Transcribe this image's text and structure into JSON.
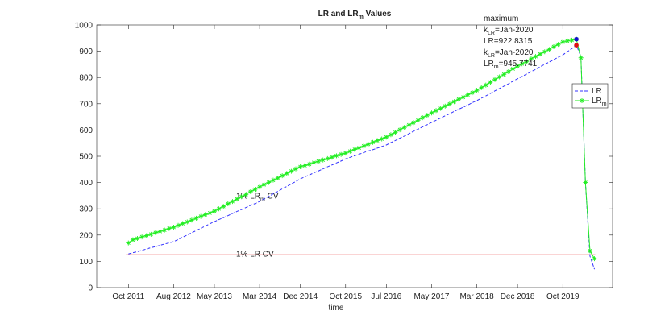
{
  "chart_data": {
    "type": "line",
    "title": [
      "LR and LR",
      {
        "sub": "m"
      },
      " Values"
    ],
    "xlabel": "time",
    "x": [
      "2011-10",
      "2011-11",
      "2011-12",
      "2012-01",
      "2012-02",
      "2012-03",
      "2012-04",
      "2012-05",
      "2012-06",
      "2012-07",
      "2012-08",
      "2012-09",
      "2012-10",
      "2012-11",
      "2012-12",
      "2013-01",
      "2013-02",
      "2013-03",
      "2013-04",
      "2013-05",
      "2013-06",
      "2013-07",
      "2013-08",
      "2013-09",
      "2013-10",
      "2013-11",
      "2013-12",
      "2014-01",
      "2014-02",
      "2014-03",
      "2014-04",
      "2014-05",
      "2014-06",
      "2014-07",
      "2014-08",
      "2014-09",
      "2014-10",
      "2014-11",
      "2014-12",
      "2015-01",
      "2015-02",
      "2015-03",
      "2015-04",
      "2015-05",
      "2015-06",
      "2015-07",
      "2015-08",
      "2015-09",
      "2015-10",
      "2015-11",
      "2015-12",
      "2016-01",
      "2016-02",
      "2016-03",
      "2016-04",
      "2016-05",
      "2016-06",
      "2016-07",
      "2016-08",
      "2016-09",
      "2016-10",
      "2016-11",
      "2016-12",
      "2017-01",
      "2017-02",
      "2017-03",
      "2017-04",
      "2017-05",
      "2017-06",
      "2017-07",
      "2017-08",
      "2017-09",
      "2017-10",
      "2017-11",
      "2017-12",
      "2018-01",
      "2018-02",
      "2018-03",
      "2018-04",
      "2018-05",
      "2018-06",
      "2018-07",
      "2018-08",
      "2018-09",
      "2018-10",
      "2018-11",
      "2018-12",
      "2019-01",
      "2019-02",
      "2019-03",
      "2019-04",
      "2019-05",
      "2019-06",
      "2019-07",
      "2019-08",
      "2019-09",
      "2019-10",
      "2019-11",
      "2019-12",
      "2020-01",
      "2020-02",
      "2020-03",
      "2020-04",
      "2020-05"
    ],
    "series": [
      {
        "name": "LR",
        "color": "#3333ff",
        "dash": true,
        "marker": "none",
        "max_marker_color": "#dd1111",
        "values": [
          128,
          133,
          137,
          142,
          147,
          152,
          156,
          161,
          166,
          170,
          175,
          183,
          192,
          200,
          209,
          217,
          226,
          234,
          243,
          251,
          259,
          266,
          274,
          282,
          290,
          297,
          305,
          313,
          320,
          328,
          338,
          347,
          357,
          366,
          376,
          385,
          395,
          404,
          414,
          422,
          429,
          437,
          444,
          452,
          460,
          467,
          475,
          482,
          490,
          496,
          502,
          508,
          514,
          520,
          525,
          531,
          537,
          543,
          552,
          560,
          569,
          577,
          586,
          595,
          603,
          612,
          620,
          629,
          637,
          646,
          654,
          662,
          671,
          679,
          687,
          695,
          704,
          712,
          721,
          730,
          739,
          749,
          758,
          767,
          776,
          786,
          795,
          804,
          813,
          822,
          831,
          841,
          850,
          859,
          868,
          877,
          886,
          898,
          910,
          922.8315,
          880,
          400,
          120,
          70
        ]
      },
      {
        "name": [
          "LR",
          {
            "sub": "m"
          }
        ],
        "color": "#22ee22",
        "dash": false,
        "marker": "asterisk",
        "max_marker_color": "#1111cc",
        "values": [
          170,
          182,
          187,
          193,
          198,
          203,
          209,
          214,
          219,
          225,
          230,
          237,
          244,
          250,
          257,
          264,
          271,
          278,
          284,
          291,
          300,
          309,
          319,
          328,
          337,
          346,
          355,
          365,
          374,
          383,
          392,
          400,
          409,
          417,
          426,
          435,
          443,
          452,
          460,
          465,
          470,
          476,
          481,
          486,
          491,
          496,
          502,
          507,
          512,
          519,
          526,
          532,
          539,
          546,
          553,
          560,
          566,
          573,
          582,
          591,
          601,
          610,
          619,
          628,
          637,
          647,
          656,
          665,
          674,
          682,
          691,
          699,
          708,
          717,
          725,
          734,
          742,
          751,
          761,
          771,
          782,
          792,
          802,
          812,
          822,
          833,
          843,
          852,
          861,
          871,
          880,
          889,
          898,
          907,
          917,
          926,
          935,
          939,
          942,
          945.7741,
          875,
          400,
          140,
          110
        ]
      }
    ],
    "hlines": [
      {
        "value": 345,
        "color": "#555555",
        "label": [
          "1% LR",
          {
            "sub": "m"
          },
          " CV"
        ]
      },
      {
        "value": 125,
        "color": "#ee5555",
        "label": "1% LR CV"
      }
    ],
    "annotations": [
      "maximum",
      [
        "k",
        {
          "sub": "LR"
        },
        "=Jan-2020"
      ],
      "LR=922.8315",
      [
        "k",
        {
          "sub": "LR"
        },
        "=Jan-2020"
      ],
      [
        "LR",
        {
          "sub": "m"
        },
        "=945.7741"
      ]
    ],
    "xlim": [
      "2011-03",
      "2020-09"
    ],
    "xticks": [
      {
        "value": "2011-10",
        "label": "Oct 2011"
      },
      {
        "value": "2012-08",
        "label": "Aug 2012"
      },
      {
        "value": "2013-05",
        "label": "May 2013"
      },
      {
        "value": "2014-03",
        "label": "Mar 2014"
      },
      {
        "value": "2014-12",
        "label": "Dec 2014"
      },
      {
        "value": "2015-10",
        "label": "Oct 2015"
      },
      {
        "value": "2016-07",
        "label": "Jul 2016"
      },
      {
        "value": "2017-05",
        "label": "May 2017"
      },
      {
        "value": "2018-03",
        "label": "Mar 2018"
      },
      {
        "value": "2018-12",
        "label": "Dec 2018"
      },
      {
        "value": "2019-10",
        "label": "Oct 2019"
      }
    ],
    "ylim": [
      0,
      1000
    ],
    "yticks": [
      0,
      100,
      200,
      300,
      400,
      500,
      600,
      700,
      800,
      900,
      1000
    ],
    "legend": "east",
    "grid": false
  }
}
